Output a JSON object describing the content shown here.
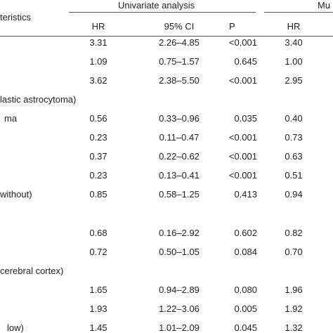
{
  "header": {
    "characteristics": "teristics",
    "univariate": "Univariate analysis",
    "multivariate": "Mu",
    "hr": "HR",
    "ci": "95% CI",
    "p": "P",
    "hr2": "HR"
  },
  "rows": [
    {
      "label": "",
      "hr": "3.31",
      "ci": "2.26–4.85",
      "p": "<0.001",
      "hr2": "3.40"
    },
    {
      "label": "",
      "hr": "1.09",
      "ci": "0.75–1.57",
      "p": "0.645",
      "hr2": "1.00"
    },
    {
      "label": "",
      "hr": "3.62",
      "ci": "2.38–5.50",
      "p": "<0.001",
      "hr2": "2.95"
    },
    {
      "label": "lastic astrocytoma)",
      "hr": "",
      "ci": "",
      "p": "",
      "hr2": ""
    },
    {
      "label": "ma",
      "hr": "0.56",
      "ci": "0.33–0.96",
      "p": "0.035",
      "hr2": "0.40"
    },
    {
      "label": "",
      "hr": "0.23",
      "ci": "0.11–0.47",
      "p": "<0.001",
      "hr2": "0.73"
    },
    {
      "label": "",
      "hr": "0.37",
      "ci": "0.22–0.62",
      "p": "<0.001",
      "hr2": "0.63"
    },
    {
      "label": "",
      "hr": "0.23",
      "ci": "0.13–0.41",
      "p": "<0.001",
      "hr2": "0.51"
    },
    {
      "label": " without)",
      "hr": "0.85",
      "ci": "0.58–1.25",
      "p": "0.413",
      "hr2": "0.94"
    },
    {
      "label": "",
      "hr": "0.68",
      "ci": "0.16–2.92",
      "p": "0.602",
      "hr2": "0.82"
    },
    {
      "label": "",
      "hr": "0.72",
      "ci": "0.50–1.05",
      "p": "0.084",
      "hr2": "0.70"
    },
    {
      "label": " cerebral cortex)",
      "hr": "",
      "ci": "",
      "p": "",
      "hr2": ""
    },
    {
      "label": "",
      "hr": "1.65",
      "ci": "0.94–2.89",
      "p": "0.080",
      "hr2": "1.96"
    },
    {
      "label": "",
      "hr": "1.93",
      "ci": "1.22–3.06",
      "p": "0.005",
      "hr2": "1.92"
    },
    {
      "label": "low)",
      "hr": "1.45",
      "ci": "1.01–2.09",
      "p": "0.045",
      "hr2": "1.32"
    }
  ]
}
